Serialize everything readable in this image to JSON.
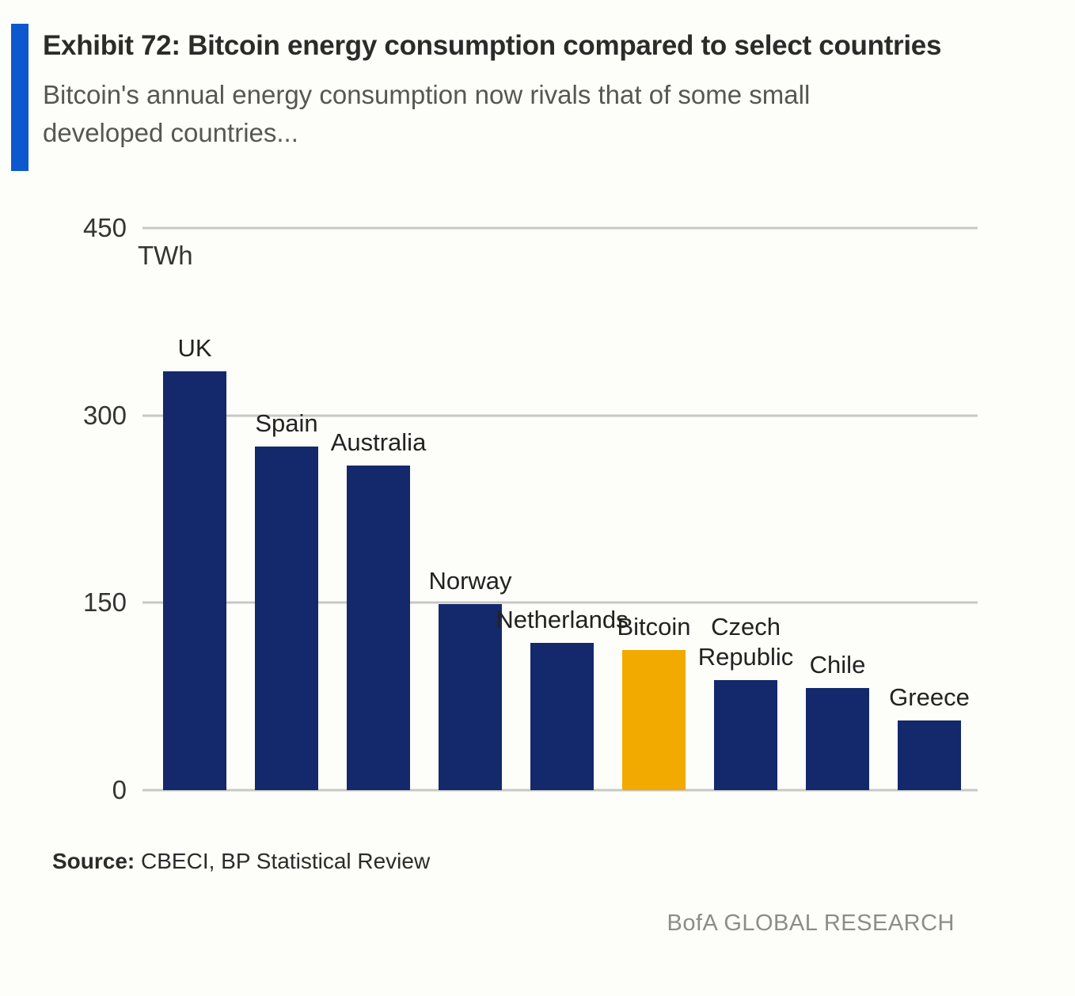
{
  "header": {
    "title": "Exhibit 72: Bitcoin energy consumption compared to select countries",
    "subtitle_line1": "Bitcoin's annual energy consumption now rivals that of some small",
    "subtitle_line2": "developed countries..."
  },
  "chart_data": {
    "type": "bar",
    "title": "Bitcoin energy consumption compared to select countries",
    "unit_label": "TWh",
    "categories": [
      "UK",
      "Spain",
      "Australia",
      "Norway",
      "Netherlands",
      "Bitcoin",
      "Czech Republic",
      "Chile",
      "Greece"
    ],
    "values": [
      335,
      275,
      260,
      149,
      118,
      112,
      88,
      82,
      56
    ],
    "label_lines": [
      [
        "UK"
      ],
      [
        "Spain"
      ],
      [
        "Australia"
      ],
      [
        "Norway"
      ],
      [
        "Netherlands"
      ],
      [
        "Bitcoin"
      ],
      [
        "Czech",
        "Republic"
      ],
      [
        "Chile"
      ],
      [
        "Greece"
      ]
    ],
    "highlight_category": "Bitcoin",
    "bar_color": "#14296b",
    "highlight_color": "#f2a900",
    "accent_color": "#0d58cf",
    "ylim": [
      0,
      450
    ],
    "yticks": [
      0,
      150,
      300,
      450
    ],
    "grid": true,
    "legend": "none",
    "xlabel": "",
    "ylabel": "TWh"
  },
  "footer": {
    "source_label": "Source:",
    "source_text": "CBECI, BP Statistical Review",
    "brand": "BofA GLOBAL RESEARCH"
  }
}
